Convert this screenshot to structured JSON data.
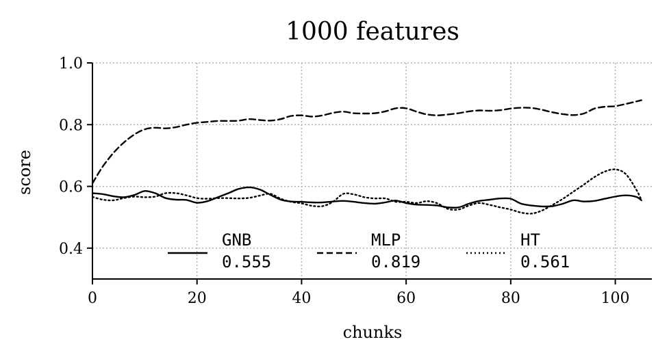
{
  "chart_data": {
    "type": "line",
    "title": "1000 features",
    "xlabel": "chunks",
    "ylabel": "score",
    "xlim": [
      0,
      107
    ],
    "ylim": [
      0.3,
      1.0
    ],
    "xticks": [
      0,
      20,
      40,
      60,
      80,
      100
    ],
    "xtick_labels": [
      "0",
      "20",
      "40",
      "60",
      "80",
      "100"
    ],
    "yticks": [
      0.4,
      0.6,
      0.8,
      1.0
    ],
    "ytick_labels": [
      "0.4",
      "0.6",
      "0.8",
      "1.0"
    ],
    "grid": true,
    "legend_position": "bottom-center",
    "series": [
      {
        "name": "GNB",
        "legend_value": "0.555",
        "line_style": "solid",
        "color": "#000000",
        "x": [
          0,
          2,
          4,
          6,
          8,
          10,
          12,
          14,
          16,
          18,
          20,
          22,
          24,
          26,
          28,
          30,
          32,
          34,
          36,
          38,
          40,
          42,
          44,
          46,
          48,
          50,
          52,
          54,
          56,
          58,
          60,
          62,
          64,
          66,
          68,
          70,
          72,
          74,
          76,
          78,
          80,
          82,
          84,
          86,
          88,
          90,
          92,
          94,
          96,
          98,
          100,
          102,
          104,
          105
        ],
        "y": [
          0.578,
          0.575,
          0.568,
          0.565,
          0.572,
          0.585,
          0.578,
          0.562,
          0.557,
          0.556,
          0.547,
          0.552,
          0.565,
          0.578,
          0.592,
          0.597,
          0.59,
          0.573,
          0.557,
          0.551,
          0.55,
          0.548,
          0.548,
          0.551,
          0.553,
          0.55,
          0.546,
          0.544,
          0.548,
          0.554,
          0.546,
          0.541,
          0.54,
          0.538,
          0.532,
          0.532,
          0.544,
          0.553,
          0.557,
          0.561,
          0.56,
          0.544,
          0.538,
          0.535,
          0.536,
          0.544,
          0.555,
          0.551,
          0.553,
          0.56,
          0.567,
          0.571,
          0.566,
          0.555
        ]
      },
      {
        "name": "MLP",
        "legend_value": "0.819",
        "line_style": "dashed",
        "color": "#000000",
        "x": [
          0,
          2,
          4,
          6,
          8,
          10,
          12,
          14,
          16,
          18,
          20,
          22,
          24,
          26,
          28,
          30,
          32,
          34,
          36,
          38,
          40,
          42,
          44,
          46,
          48,
          50,
          52,
          54,
          56,
          58,
          60,
          62,
          64,
          66,
          68,
          70,
          72,
          74,
          76,
          78,
          80,
          82,
          84,
          86,
          88,
          90,
          92,
          94,
          96,
          98,
          100,
          102,
          104,
          105
        ],
        "y": [
          0.61,
          0.665,
          0.708,
          0.742,
          0.768,
          0.785,
          0.79,
          0.788,
          0.792,
          0.8,
          0.806,
          0.809,
          0.812,
          0.812,
          0.813,
          0.818,
          0.815,
          0.813,
          0.818,
          0.828,
          0.83,
          0.826,
          0.83,
          0.838,
          0.842,
          0.837,
          0.836,
          0.837,
          0.843,
          0.853,
          0.853,
          0.842,
          0.833,
          0.83,
          0.833,
          0.837,
          0.843,
          0.846,
          0.845,
          0.847,
          0.852,
          0.855,
          0.854,
          0.848,
          0.84,
          0.834,
          0.831,
          0.836,
          0.852,
          0.858,
          0.86,
          0.867,
          0.875,
          0.879
        ]
      },
      {
        "name": "HT",
        "legend_value": "0.561",
        "line_style": "dotted",
        "color": "#000000",
        "x": [
          0,
          2,
          4,
          6,
          8,
          10,
          12,
          14,
          16,
          18,
          20,
          22,
          24,
          26,
          28,
          30,
          32,
          34,
          36,
          38,
          40,
          42,
          44,
          46,
          48,
          50,
          52,
          54,
          56,
          58,
          60,
          62,
          64,
          66,
          68,
          70,
          72,
          74,
          76,
          78,
          80,
          82,
          84,
          86,
          88,
          90,
          92,
          94,
          96,
          98,
          100,
          102,
          104,
          105
        ],
        "y": [
          0.566,
          0.557,
          0.555,
          0.562,
          0.567,
          0.565,
          0.567,
          0.578,
          0.578,
          0.571,
          0.562,
          0.56,
          0.562,
          0.562,
          0.561,
          0.563,
          0.57,
          0.576,
          0.56,
          0.55,
          0.545,
          0.537,
          0.536,
          0.55,
          0.576,
          0.574,
          0.565,
          0.561,
          0.561,
          0.55,
          0.55,
          0.546,
          0.552,
          0.545,
          0.527,
          0.525,
          0.538,
          0.546,
          0.54,
          0.532,
          0.525,
          0.515,
          0.512,
          0.522,
          0.54,
          0.56,
          0.583,
          0.606,
          0.63,
          0.648,
          0.655,
          0.64,
          0.59,
          0.556
        ]
      }
    ]
  }
}
